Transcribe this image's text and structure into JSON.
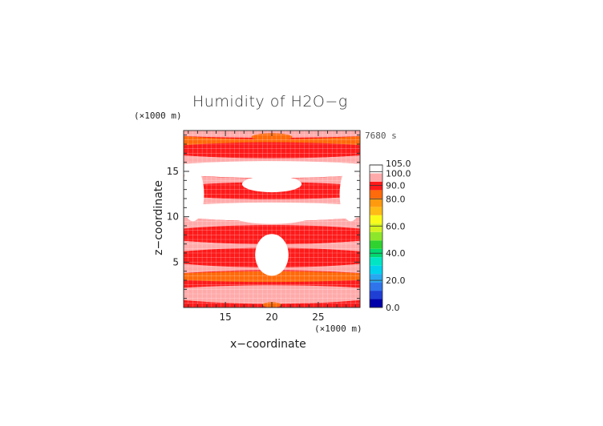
{
  "chart_data": {
    "type": "heatmap",
    "title": "Humidity of H2O−g",
    "xlabel": "x−coordinate",
    "ylabel": "z−coordinate",
    "x_unit": "(×1000 m)",
    "y_unit": "(×1000 m)",
    "time_label": "7680 s",
    "xlim": [
      10.5,
      29.5
    ],
    "ylim": [
      0,
      19.5
    ],
    "x_ticks": [
      15,
      20,
      25
    ],
    "y_ticks": [
      5,
      10,
      15
    ],
    "colorbar": {
      "range": [
        0,
        105
      ],
      "tick_labels": [
        "0.0",
        "20.0",
        "40.0",
        "60.0",
        "80.0",
        "90.0",
        "100.0",
        "105.0"
      ],
      "tick_values": [
        0,
        20,
        40,
        60,
        80,
        90,
        100,
        105
      ],
      "colors": [
        "#0000a8",
        "#1f3fd4",
        "#2f74ea",
        "#27a8f0",
        "#00d2ee",
        "#00e6c4",
        "#00d870",
        "#2fd22f",
        "#8ee62a",
        "#d4f21e",
        "#fbfb1a",
        "#ffbc14",
        "#ff9a0f",
        "#ff6a0a",
        "#ff1a1a",
        "#ffaaaa",
        "#ffffff"
      ]
    },
    "grid": true,
    "bands": [
      {
        "z": 0.2,
        "value": 88
      },
      {
        "z": 1.5,
        "value": 93
      },
      {
        "z": 2.8,
        "value": 90
      },
      {
        "z": 3.3,
        "value": 82
      },
      {
        "z": 4.2,
        "value": 96
      },
      {
        "z": 5.5,
        "value": 90
      },
      {
        "z": 6.8,
        "value": 93
      },
      {
        "z": 8.0,
        "value": 90
      },
      {
        "z": 9.3,
        "value": 96
      },
      {
        "z": 10.6,
        "value": 100
      },
      {
        "z": 11.8,
        "value": 96
      },
      {
        "z": 12.8,
        "value": 90
      },
      {
        "z": 14.0,
        "value": 93
      },
      {
        "z": 15.3,
        "value": 100
      },
      {
        "z": 16.3,
        "value": 96
      },
      {
        "z": 17.3,
        "value": 90
      },
      {
        "z": 18.4,
        "value": 86
      },
      {
        "z": 19.4,
        "value": 96
      }
    ],
    "features": [
      {
        "x": 20,
        "z": 5.8,
        "rx": 1.8,
        "rz": 2.3,
        "value": 102
      },
      {
        "x": 20,
        "z": 10.2,
        "rx": 4.5,
        "rz": 1.0,
        "value": 102
      },
      {
        "x": 20,
        "z": 13.6,
        "rx": 3.2,
        "rz": 0.9,
        "value": 102
      },
      {
        "x": 11.5,
        "z": 12.5,
        "rx": 1.2,
        "rz": 3.0,
        "value": 102
      },
      {
        "x": 28.5,
        "z": 12.5,
        "rx": 1.2,
        "rz": 3.0,
        "value": 102
      },
      {
        "x": 20,
        "z": 18.8,
        "rx": 2.2,
        "rz": 0.4,
        "value": 82
      },
      {
        "x": 20,
        "z": 0.3,
        "rx": 1.0,
        "rz": 0.3,
        "value": 82
      }
    ]
  }
}
